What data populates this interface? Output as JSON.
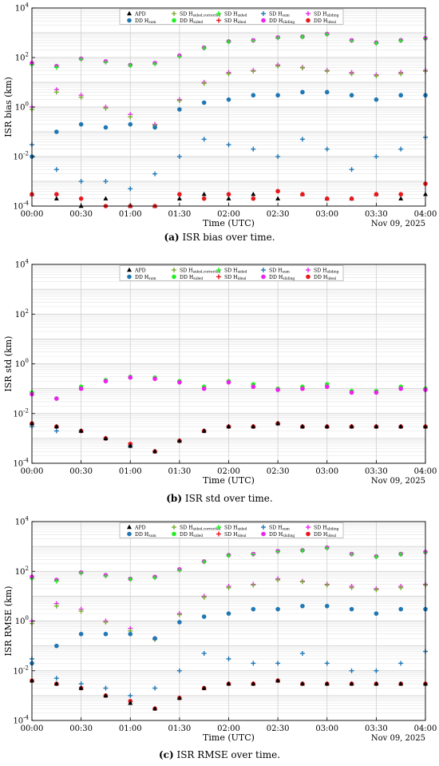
{
  "figure": {
    "x_tick_labels": [
      "00:00",
      "00:30",
      "01:00",
      "01:30",
      "02:00",
      "02:30",
      "03:00",
      "03:30",
      "04:00"
    ],
    "x_label": "Time (UTC)",
    "date_label": "Nov 09, 2025",
    "y_exponents": [
      "4",
      "2",
      "0",
      "-2",
      "-4"
    ],
    "y_base": "10"
  },
  "legend": [
    {
      "base": "APD",
      "sub": "",
      "marker": "triangle",
      "color": "#000000"
    },
    {
      "base": "SD H",
      "sub": "sided,corrected",
      "marker": "plus",
      "color": "#77ac30"
    },
    {
      "base": "SD H",
      "sub": "sided",
      "marker": "plus",
      "color": "#22ee22"
    },
    {
      "base": "SD H",
      "sub": "sum",
      "marker": "plus",
      "color": "#1f77b4"
    },
    {
      "base": "SD H",
      "sub": "sliding",
      "marker": "plus",
      "color": "#ee22ee"
    },
    {
      "base": "DD H",
      "sub": "sum",
      "marker": "dot",
      "color": "#1f77b4"
    },
    {
      "base": "DD H",
      "sub": "sided",
      "marker": "dot",
      "color": "#22ee22"
    },
    {
      "base": "SD H",
      "sub": "ideal",
      "marker": "plus",
      "color": "#e8171b"
    },
    {
      "base": "DD H",
      "sub": "sliding",
      "marker": "dot",
      "color": "#ee22ee"
    },
    {
      "base": "DD H",
      "sub": "ideal",
      "marker": "dot",
      "color": "#e8171b"
    }
  ],
  "panels": [
    {
      "ylabel": "ISR bias (km)",
      "caption_letter": "(a)",
      "caption_text": "ISR bias over time."
    },
    {
      "ylabel": "ISR std (km)",
      "caption_letter": "(b)",
      "caption_text": "ISR std over time."
    },
    {
      "ylabel": "ISR RMSE (km)",
      "caption_letter": "(c)",
      "caption_text": "ISR RMSE over time."
    }
  ],
  "chart_data": [
    {
      "type": "scatter",
      "title": "ISR bias over time.",
      "xlabel": "Time (UTC)",
      "ylabel": "ISR bias (km)",
      "yscale": "log",
      "ylim": [
        0.0001,
        10000
      ],
      "xlim": [
        "00:00",
        "04:00"
      ],
      "grid": true,
      "legend_position": "top",
      "x": [
        "00:00",
        "00:15",
        "00:30",
        "00:45",
        "01:00",
        "01:15",
        "01:30",
        "01:45",
        "02:00",
        "02:15",
        "02:30",
        "02:45",
        "03:00",
        "03:15",
        "03:30",
        "03:45",
        "04:00"
      ],
      "series": [
        {
          "name": "DD H sliding",
          "values": [
            60,
            45,
            90,
            70,
            50,
            60,
            120,
            250,
            450,
            500,
            650,
            700,
            900,
            500,
            400,
            500,
            600
          ]
        },
        {
          "name": "SD H sided",
          "values": [
            50,
            40,
            85,
            65,
            48,
            55,
            110,
            240,
            430,
            480,
            620,
            680,
            850,
            480,
            380,
            480,
            580
          ]
        },
        {
          "name": "SD H sliding",
          "values": [
            1.0,
            5,
            3,
            1.0,
            0.5,
            0.2,
            2,
            10,
            25,
            30,
            50,
            40,
            30,
            25,
            20,
            25,
            30
          ]
        },
        {
          "name": "SD H sided,corrected",
          "values": [
            0.8,
            4,
            2.5,
            0.9,
            0.4,
            0.18,
            1.8,
            9,
            22,
            28,
            45,
            38,
            28,
            22,
            18,
            22,
            28
          ]
        },
        {
          "name": "DD H sum",
          "values": [
            0.01,
            0.1,
            0.2,
            0.15,
            0.2,
            0.15,
            0.8,
            1.5,
            2,
            3,
            3,
            4,
            4,
            3,
            2,
            3,
            3
          ]
        },
        {
          "name": "SD H sum",
          "values": [
            0.03,
            0.003,
            0.001,
            0.001,
            0.0005,
            0.002,
            0.01,
            0.05,
            0.03,
            0.02,
            0.01,
            0.05,
            0.02,
            0.003,
            0.01,
            0.02,
            0.06
          ]
        },
        {
          "name": "APD",
          "values": [
            0.0003,
            0.0002,
            0.0001,
            0.0002,
            0.0001,
            0.0001,
            0.0002,
            0.0003,
            0.0002,
            0.0003,
            0.0002,
            0.0003,
            0.0002,
            0.0002,
            0.0003,
            0.0002,
            0.0003
          ]
        },
        {
          "name": "DD H ideal",
          "values": [
            0.0003,
            0.0003,
            0.0002,
            0.0001,
            0.0001,
            0.0001,
            0.0003,
            0.0002,
            0.0003,
            0.0002,
            0.0004,
            0.0003,
            0.0002,
            0.0002,
            0.0003,
            0.0003,
            0.0008
          ]
        }
      ]
    },
    {
      "type": "scatter",
      "title": "ISR std over time.",
      "xlabel": "Time (UTC)",
      "ylabel": "ISR std (km)",
      "yscale": "log",
      "ylim": [
        0.0001,
        10000
      ],
      "xlim": [
        "00:00",
        "04:00"
      ],
      "grid": true,
      "legend_position": "top",
      "x": [
        "00:00",
        "00:15",
        "00:30",
        "00:45",
        "01:00",
        "01:15",
        "01:30",
        "01:45",
        "02:00",
        "02:15",
        "02:30",
        "02:45",
        "03:00",
        "03:15",
        "03:30",
        "03:45",
        "04:00"
      ],
      "series": [
        {
          "name": "DD H sided",
          "values": [
            0.07,
            0.04,
            0.12,
            0.22,
            0.3,
            0.28,
            0.2,
            0.12,
            0.2,
            0.15,
            0.1,
            0.12,
            0.15,
            0.08,
            0.08,
            0.12,
            0.1
          ]
        },
        {
          "name": "DD H sliding",
          "values": [
            0.06,
            0.04,
            0.1,
            0.2,
            0.28,
            0.25,
            0.18,
            0.1,
            0.18,
            0.12,
            0.09,
            0.1,
            0.12,
            0.07,
            0.07,
            0.1,
            0.09
          ]
        },
        {
          "name": "SD H sum",
          "values": [
            0.003,
            0.002,
            0.002,
            0.001,
            0.0005,
            0.0003,
            0.0008,
            0.002,
            0.003,
            0.003,
            0.004,
            0.003,
            0.003,
            0.003,
            0.003,
            0.003,
            0.003
          ]
        },
        {
          "name": "DD H ideal",
          "values": [
            0.004,
            0.003,
            0.002,
            0.001,
            0.0006,
            0.0003,
            0.0008,
            0.002,
            0.003,
            0.003,
            0.004,
            0.003,
            0.003,
            0.003,
            0.003,
            0.003,
            0.003
          ]
        },
        {
          "name": "APD",
          "values": [
            0.004,
            0.003,
            0.002,
            0.001,
            0.0005,
            0.0003,
            0.0008,
            0.002,
            0.003,
            0.003,
            0.004,
            0.003,
            0.003,
            0.003,
            0.003,
            0.003,
            0.003
          ]
        }
      ]
    },
    {
      "type": "scatter",
      "title": "ISR RMSE over time.",
      "xlabel": "Time (UTC)",
      "ylabel": "ISR RMSE (km)",
      "yscale": "log",
      "ylim": [
        0.0001,
        10000
      ],
      "xlim": [
        "00:00",
        "04:00"
      ],
      "grid": true,
      "legend_position": "top",
      "x": [
        "00:00",
        "00:15",
        "00:30",
        "00:45",
        "01:00",
        "01:15",
        "01:30",
        "01:45",
        "02:00",
        "02:15",
        "02:30",
        "02:45",
        "03:00",
        "03:15",
        "03:30",
        "03:45",
        "04:00"
      ],
      "series": [
        {
          "name": "DD H sliding",
          "values": [
            60,
            45,
            90,
            70,
            50,
            60,
            120,
            250,
            450,
            500,
            650,
            700,
            900,
            500,
            400,
            500,
            600
          ]
        },
        {
          "name": "SD H sided",
          "values": [
            50,
            40,
            85,
            65,
            48,
            55,
            110,
            240,
            430,
            480,
            620,
            680,
            850,
            480,
            380,
            480,
            580
          ]
        },
        {
          "name": "SD H sliding",
          "values": [
            1.0,
            5,
            3,
            1.0,
            0.5,
            0.2,
            2,
            10,
            25,
            30,
            50,
            40,
            30,
            25,
            20,
            25,
            30
          ]
        },
        {
          "name": "SD H sided,corrected",
          "values": [
            0.8,
            4,
            2.5,
            0.9,
            0.4,
            0.18,
            1.8,
            9,
            22,
            28,
            45,
            38,
            28,
            22,
            18,
            22,
            28
          ]
        },
        {
          "name": "DD H sum",
          "values": [
            0.02,
            0.1,
            0.3,
            0.3,
            0.3,
            0.2,
            0.9,
            1.5,
            2,
            3,
            3,
            4,
            4,
            3,
            2,
            3,
            3
          ]
        },
        {
          "name": "SD H sum",
          "values": [
            0.03,
            0.005,
            0.003,
            0.002,
            0.001,
            0.002,
            0.01,
            0.05,
            0.03,
            0.02,
            0.02,
            0.05,
            0.02,
            0.01,
            0.01,
            0.02,
            0.06
          ]
        },
        {
          "name": "DD H ideal",
          "values": [
            0.004,
            0.003,
            0.002,
            0.001,
            0.0006,
            0.0003,
            0.0008,
            0.002,
            0.003,
            0.003,
            0.004,
            0.003,
            0.003,
            0.003,
            0.003,
            0.003,
            0.003
          ]
        },
        {
          "name": "APD",
          "values": [
            0.004,
            0.003,
            0.002,
            0.001,
            0.0005,
            0.0003,
            0.0008,
            0.002,
            0.003,
            0.003,
            0.004,
            0.003,
            0.003,
            0.003,
            0.003,
            0.003,
            0.003
          ]
        }
      ]
    }
  ]
}
